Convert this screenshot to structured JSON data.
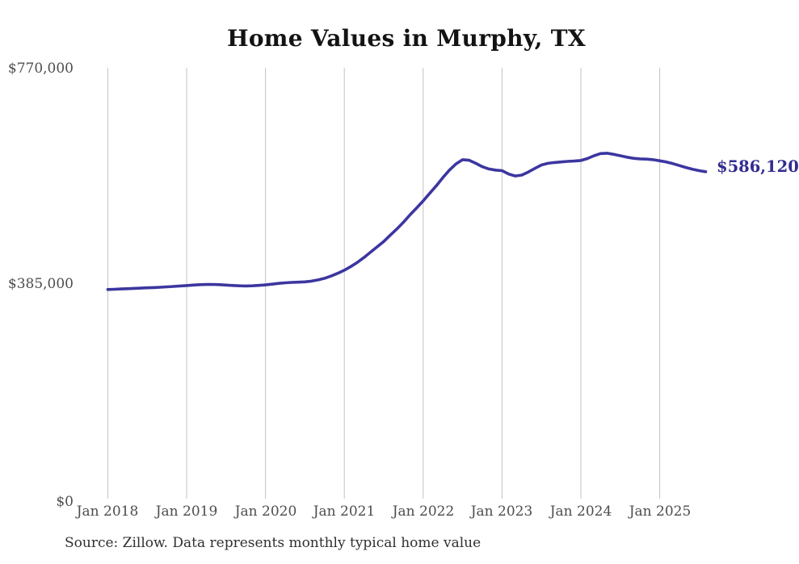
{
  "title": "Home Values in Murphy, TX",
  "source_note": "Source: Zillow. Data represents monthly typical home value",
  "current_value_label": "$586,120",
  "colors": {
    "line": "#3c36a0",
    "value_label": "#322c91",
    "grid": "#c2c2c2",
    "title_text": "#131313",
    "axis_text": "#4d4d4d",
    "source_text": "#303030",
    "background": "#ffffff"
  },
  "chart_data": {
    "type": "line",
    "title": "Home Values in Murphy, TX",
    "xlabel": "",
    "ylabel": "",
    "grid": "vertical-only",
    "legend": "none",
    "ylim": [
      0,
      770000
    ],
    "y_ticks": [
      770000,
      385000,
      0
    ],
    "y_tick_labels": [
      "$770,000",
      "$385,000",
      "$0"
    ],
    "x_tick_labels": [
      "Jan 2018",
      "Jan 2019",
      "Jan 2020",
      "Jan 2021",
      "Jan 2022",
      "Jan 2023",
      "Jan 2024",
      "Jan 2025"
    ],
    "x_start_month": "Jan 2018",
    "x_end_month": "Aug 2025",
    "final_value": 586120,
    "series_name": "Typical home value (monthly)",
    "values": [
      376000,
      376400,
      376900,
      377400,
      377900,
      378400,
      378900,
      379400,
      380000,
      380700,
      381400,
      382200,
      383000,
      383800,
      384500,
      384900,
      385000,
      384600,
      383900,
      383100,
      382500,
      382300,
      382600,
      383300,
      384200,
      385400,
      386800,
      387900,
      388600,
      389000,
      389600,
      390900,
      393000,
      396000,
      400000,
      404800,
      410300,
      417000,
      424500,
      433000,
      442500,
      452000,
      461500,
      473000,
      484000,
      496000,
      509000,
      521500,
      534000,
      547500,
      561000,
      575500,
      589000,
      600000,
      607500,
      606500,
      601000,
      595000,
      591000,
      589000,
      588000,
      582000,
      578500,
      580000,
      585500,
      592000,
      598000,
      601000,
      602500,
      603500,
      604500,
      605000,
      606000,
      609500,
      614500,
      618500,
      619000,
      617000,
      614500,
      612000,
      610000,
      609000,
      608500,
      607500,
      605500,
      603500,
      600500,
      597000,
      593500,
      590500,
      588000,
      586120
    ]
  }
}
